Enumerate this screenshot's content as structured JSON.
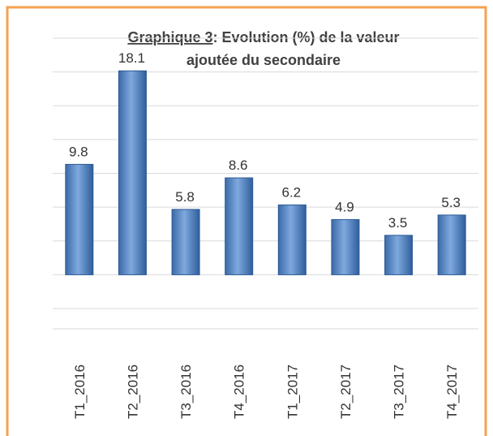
{
  "chart_data": {
    "type": "bar",
    "title": [
      "Graphique 3",
      ": Evolution (%) de la valeur",
      "ajoutée du secondaire"
    ],
    "categories": [
      "T1_2016",
      "T2_2016",
      "T3_2016",
      "T4_2016",
      "T1_2017",
      "T2_2017",
      "T3_2017",
      "T4_2017"
    ],
    "values": [
      9.8,
      18.1,
      5.8,
      8.6,
      6.2,
      4.9,
      3.5,
      5.3
    ],
    "color": "#4f81bd",
    "ylim": [
      -4.8,
      21
    ],
    "yticks": [
      -3,
      0,
      3,
      6,
      9,
      12,
      15,
      18,
      21
    ],
    "grid": true
  }
}
